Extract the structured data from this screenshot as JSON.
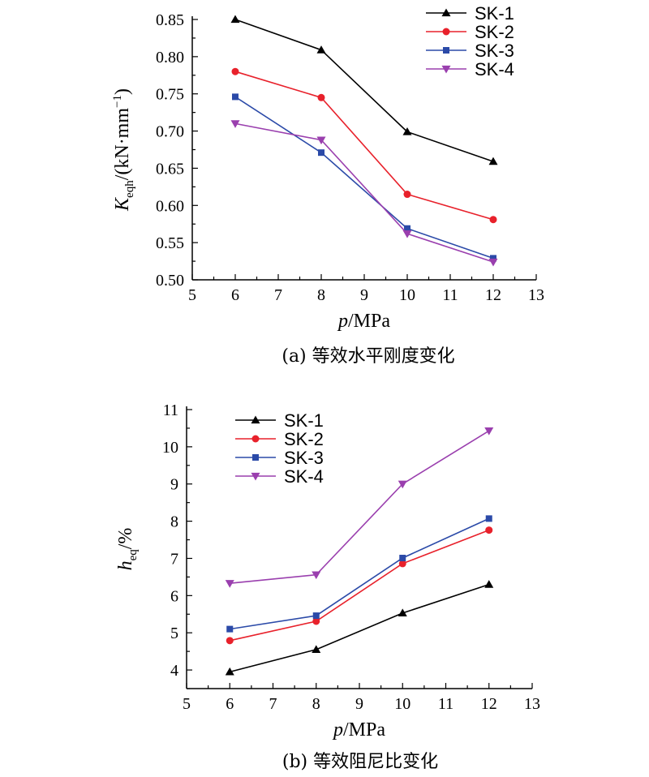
{
  "chart_data": [
    {
      "type": "line",
      "caption": "(a) 等效水平刚度变化",
      "xlabel": {
        "var": "p",
        "unit": "/MPa"
      },
      "ylabel": {
        "var": "K",
        "sub": "eqh",
        "unit": "/(kN·mm",
        "sup": "−1",
        "close": ")"
      },
      "xlim": [
        5,
        13
      ],
      "ylim": [
        0.5,
        0.85
      ],
      "xticks": [
        "5",
        "6",
        "7",
        "8",
        "9",
        "10",
        "11",
        "12",
        "13"
      ],
      "yticks": [
        "0.50",
        "0.55",
        "0.60",
        "0.65",
        "0.70",
        "0.75",
        "0.80",
        "0.85"
      ],
      "legend_position": "top-right",
      "grid": false,
      "series": [
        {
          "name": "SK-1",
          "color": "#000000",
          "marker": "triangle-up",
          "x": [
            6,
            8,
            10,
            12
          ],
          "y": [
            0.85,
            0.809,
            0.699,
            0.659
          ]
        },
        {
          "name": "SK-2",
          "color": "#e8212b",
          "marker": "circle",
          "x": [
            6,
            8,
            10,
            12
          ],
          "y": [
            0.78,
            0.745,
            0.615,
            0.581
          ]
        },
        {
          "name": "SK-3",
          "color": "#2b4aa8",
          "marker": "square",
          "x": [
            6,
            8,
            10,
            12
          ],
          "y": [
            0.746,
            0.671,
            0.569,
            0.529
          ]
        },
        {
          "name": "SK-4",
          "color": "#9a3fae",
          "marker": "triangle-down",
          "x": [
            6,
            8,
            10,
            12
          ],
          "y": [
            0.71,
            0.688,
            0.562,
            0.524
          ]
        }
      ]
    },
    {
      "type": "line",
      "caption": "(b) 等效阻尼比变化",
      "xlabel": {
        "var": "p",
        "unit": "/MPa"
      },
      "ylabel": {
        "var": "h",
        "sub": "eq",
        "unit": "/%",
        "sup": "",
        "close": ""
      },
      "xlim": [
        5,
        13
      ],
      "ylim": [
        3.5,
        11
      ],
      "xticks": [
        "5",
        "6",
        "7",
        "8",
        "9",
        "10",
        "11",
        "12",
        "13"
      ],
      "yticks": [
        "4",
        "5",
        "6",
        "7",
        "8",
        "9",
        "10",
        "11"
      ],
      "legend_position": "top-left",
      "grid": false,
      "series": [
        {
          "name": "SK-1",
          "color": "#000000",
          "marker": "triangle-up",
          "x": [
            6,
            8,
            10,
            12
          ],
          "y": [
            3.95,
            4.55,
            5.53,
            6.3
          ]
        },
        {
          "name": "SK-2",
          "color": "#e8212b",
          "marker": "circle",
          "x": [
            6,
            8,
            10,
            12
          ],
          "y": [
            4.79,
            5.31,
            6.86,
            7.76
          ]
        },
        {
          "name": "SK-3",
          "color": "#2b4aa8",
          "marker": "square",
          "x": [
            6,
            8,
            10,
            12
          ],
          "y": [
            5.1,
            5.46,
            7.01,
            8.07
          ]
        },
        {
          "name": "SK-4",
          "color": "#9a3fae",
          "marker": "triangle-down",
          "x": [
            6,
            8,
            10,
            12
          ],
          "y": [
            6.33,
            6.56,
            9.0,
            10.43
          ]
        }
      ]
    }
  ]
}
